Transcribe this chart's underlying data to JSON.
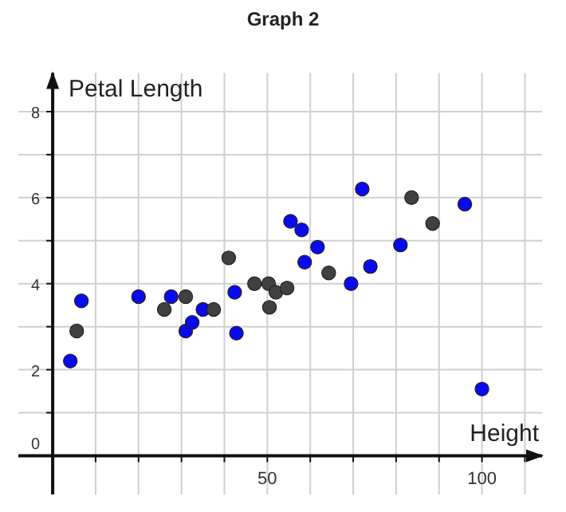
{
  "chart_data": {
    "type": "scatter",
    "title": "Graph 2",
    "xlabel": "Height",
    "ylabel": "Petal Length",
    "xlim": [
      -8,
      114
    ],
    "ylim": [
      -0.9,
      8.9
    ],
    "xticks": [
      {
        "value": 10,
        "label": null
      },
      {
        "value": 20,
        "label": null
      },
      {
        "value": 30,
        "label": null
      },
      {
        "value": 40,
        "label": null
      },
      50,
      {
        "value": 60,
        "label": null
      },
      {
        "value": 70,
        "label": null
      },
      {
        "value": 80,
        "label": null
      },
      {
        "value": 90,
        "label": null
      },
      100,
      {
        "value": 110,
        "label": null
      }
    ],
    "yticks": [
      0,
      {
        "value": 1,
        "label": null
      },
      2,
      {
        "value": 3,
        "label": null
      },
      4,
      {
        "value": 5,
        "label": null
      },
      6,
      {
        "value": 7,
        "label": null
      },
      8
    ],
    "grid": true,
    "marker": "circle",
    "series": [
      {
        "color": "#0a0aee",
        "x": [
          4.1,
          6.7,
          20,
          27.6,
          31,
          32.5,
          35,
          42.4,
          42.8,
          55.4,
          58,
          58.7,
          61.7,
          69.5,
          72.1,
          74,
          81,
          96,
          100
        ],
        "values": [
          2.2,
          3.6,
          3.7,
          3.7,
          2.9,
          3.1,
          3.4,
          3.8,
          2.85,
          5.45,
          5.25,
          4.5,
          4.85,
          4.0,
          6.2,
          4.4,
          4.9,
          5.85,
          1.55
        ]
      },
      {
        "color": "#404040",
        "x": [
          5.6,
          26,
          31,
          37.5,
          41,
          47,
          50.3,
          50.5,
          52,
          54.6,
          64.3,
          83.6,
          88.5
        ],
        "values": [
          2.9,
          3.4,
          3.7,
          3.4,
          4.6,
          4.0,
          4.0,
          3.45,
          3.8,
          3.9,
          4.25,
          6.0,
          5.4
        ]
      }
    ]
  }
}
